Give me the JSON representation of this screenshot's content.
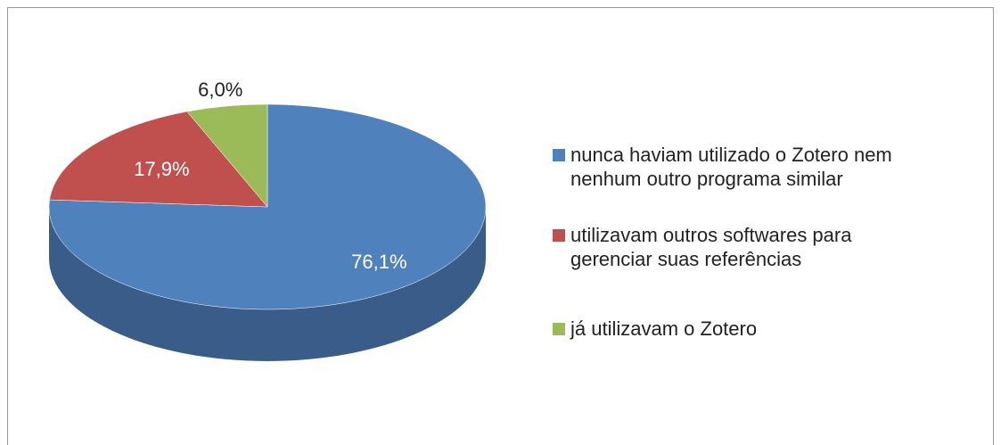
{
  "chart_data": {
    "type": "pie",
    "categories": [
      "nunca haviam utilizado o Zotero nem nenhum outro programa similar",
      "utilizavam outros softwares para gerenciar suas referências",
      "já utilizavam o Zotero"
    ],
    "values": [
      76.1,
      17.9,
      6.0
    ],
    "value_labels": [
      "76,1%",
      "17,9%",
      "6,0%"
    ],
    "colors": [
      "#4f81bd",
      "#c0504d",
      "#9bbb59"
    ],
    "legend": "right"
  }
}
